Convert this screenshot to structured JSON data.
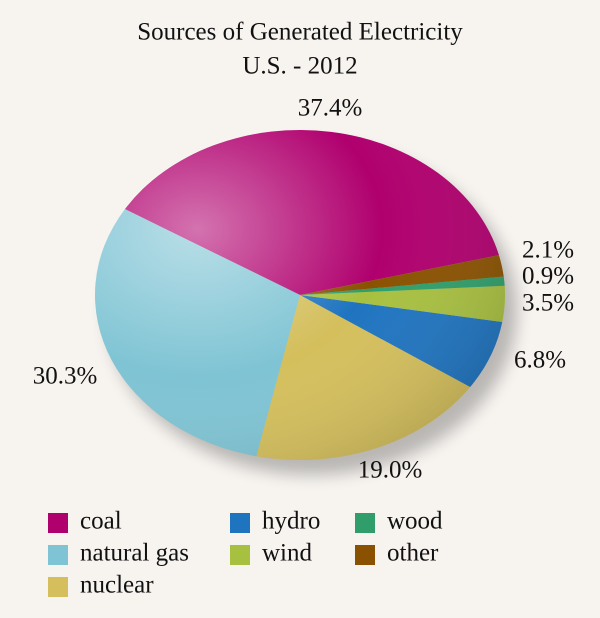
{
  "chart_data": {
    "type": "pie",
    "title": "Sources of Generated Electricity",
    "subtitle": "U.S. - 2012",
    "categories": [
      "coal",
      "natural gas",
      "nuclear",
      "hydro",
      "wind",
      "wood",
      "other"
    ],
    "values": [
      37.4,
      30.3,
      19.0,
      6.8,
      3.5,
      0.9,
      2.1
    ],
    "value_labels": [
      "37.4%",
      "30.3%",
      "19.0%",
      "6.8%",
      "3.5%",
      "0.9%",
      "2.1%"
    ],
    "colors": [
      "#b0006e",
      "#7fc4d4",
      "#d4bf5c",
      "#1f74c0",
      "#a8c040",
      "#2f9e6a",
      "#8a5200"
    ]
  }
}
